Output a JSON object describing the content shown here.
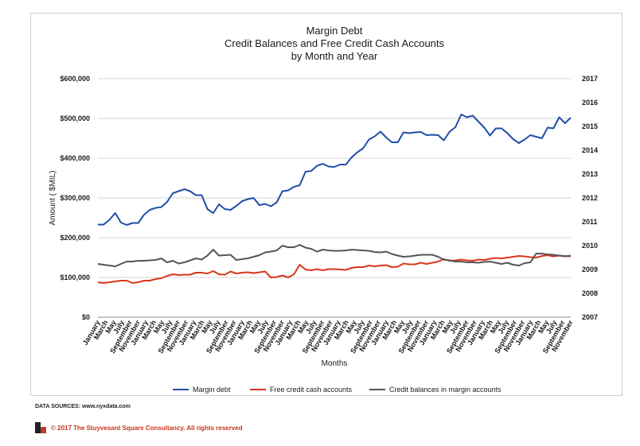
{
  "chart_data": {
    "type": "line",
    "title": [
      "Margin Debt",
      "Credit Balances and Free Credit Cash Accounts",
      "by Month and Year"
    ],
    "xlabel": "Months",
    "ylabel": "Amount ( $MIL)",
    "ylim": [
      0,
      600000
    ],
    "y_ticks": [
      "$0",
      "$100,000",
      "$200,000",
      "$300,000",
      "$400,000",
      "$500,000",
      "$600,000"
    ],
    "y2_ticks": [
      "2007",
      "2008",
      "2009",
      "2010",
      "2011",
      "2012",
      "2013",
      "2014",
      "2015",
      "2016",
      "2017"
    ],
    "x_tick_labels": [
      "January",
      "March",
      "May",
      "July",
      "September",
      "November",
      "January",
      "March",
      "May",
      "July",
      "September",
      "November",
      "January",
      "March",
      "May",
      "July",
      "September",
      "November",
      "January",
      "March",
      "May",
      "July",
      "September",
      "November",
      "January",
      "March",
      "May",
      "July",
      "September",
      "November",
      "January",
      "March",
      "May",
      "July",
      "September",
      "November",
      "January",
      "March",
      "May",
      "July",
      "September",
      "November",
      "January",
      "March",
      "May",
      "July",
      "September",
      "November",
      "January",
      "March",
      "May",
      "July",
      "September",
      "November",
      "January",
      "March",
      "May",
      "July",
      "September",
      "November"
    ],
    "grid": true,
    "legend_position": "bottom",
    "series": [
      {
        "name": "Margin debt",
        "color": "#1f4fa8",
        "values": [
          233,
          233,
          245,
          262,
          238,
          232,
          237,
          237,
          258,
          270,
          275,
          277,
          290,
          312,
          317,
          322,
          317,
          307,
          307,
          272,
          262,
          284,
          272,
          270,
          280,
          292,
          297,
          300,
          282,
          285,
          279,
          289,
          317,
          319,
          328,
          332,
          366,
          368,
          381,
          386,
          379,
          378,
          384,
          384,
          402,
          415,
          425,
          447,
          455,
          467,
          452,
          440,
          440,
          465,
          463,
          465,
          466,
          458,
          459,
          458,
          445,
          467,
          478,
          510,
          503,
          507,
          492,
          477,
          457,
          475,
          475,
          463,
          448,
          438,
          447,
          458,
          454,
          450,
          477,
          475,
          503,
          488,
          502
        ]
      },
      {
        "name": "Free credit cash accounts",
        "color": "#d8371a",
        "values": [
          88,
          86,
          88,
          90,
          92,
          92,
          86,
          88,
          92,
          92,
          96,
          98,
          104,
          108,
          106,
          107,
          107,
          112,
          112,
          110,
          116,
          108,
          107,
          115,
          110,
          112,
          113,
          111,
          113,
          115,
          100,
          101,
          105,
          100,
          108,
          132,
          120,
          118,
          121,
          118,
          121,
          121,
          120,
          119,
          124,
          126,
          126,
          130,
          128,
          130,
          131,
          126,
          127,
          135,
          133,
          133,
          137,
          134,
          137,
          140,
          146,
          142,
          143,
          145,
          143,
          142,
          145,
          144,
          147,
          149,
          148,
          150,
          152,
          154,
          153,
          151,
          150,
          154,
          156,
          153,
          155,
          154,
          153
        ]
      },
      {
        "name": "Credit balances in margin accounts",
        "color": "#555555",
        "values": [
          134,
          132,
          130,
          128,
          134,
          140,
          140,
          142,
          142,
          143,
          144,
          148,
          138,
          142,
          135,
          138,
          143,
          148,
          145,
          155,
          170,
          155,
          156,
          157,
          144,
          146,
          148,
          152,
          156,
          163,
          165,
          168,
          180,
          176,
          176,
          182,
          175,
          172,
          165,
          170,
          168,
          167,
          167,
          168,
          170,
          169,
          168,
          167,
          164,
          163,
          165,
          159,
          155,
          152,
          153,
          155,
          157,
          157,
          157,
          152,
          145,
          143,
          140,
          140,
          138,
          138,
          137,
          139,
          140,
          137,
          134,
          137,
          132,
          130,
          136,
          138,
          160,
          160,
          158,
          157,
          155,
          153,
          155
        ]
      }
    ]
  },
  "footer": {
    "data_sources": "DATA SOURCES: www.nyxdata.com",
    "copyright": "© 2017 The Stuyvesant Square Consultancy. All rights reserved"
  }
}
